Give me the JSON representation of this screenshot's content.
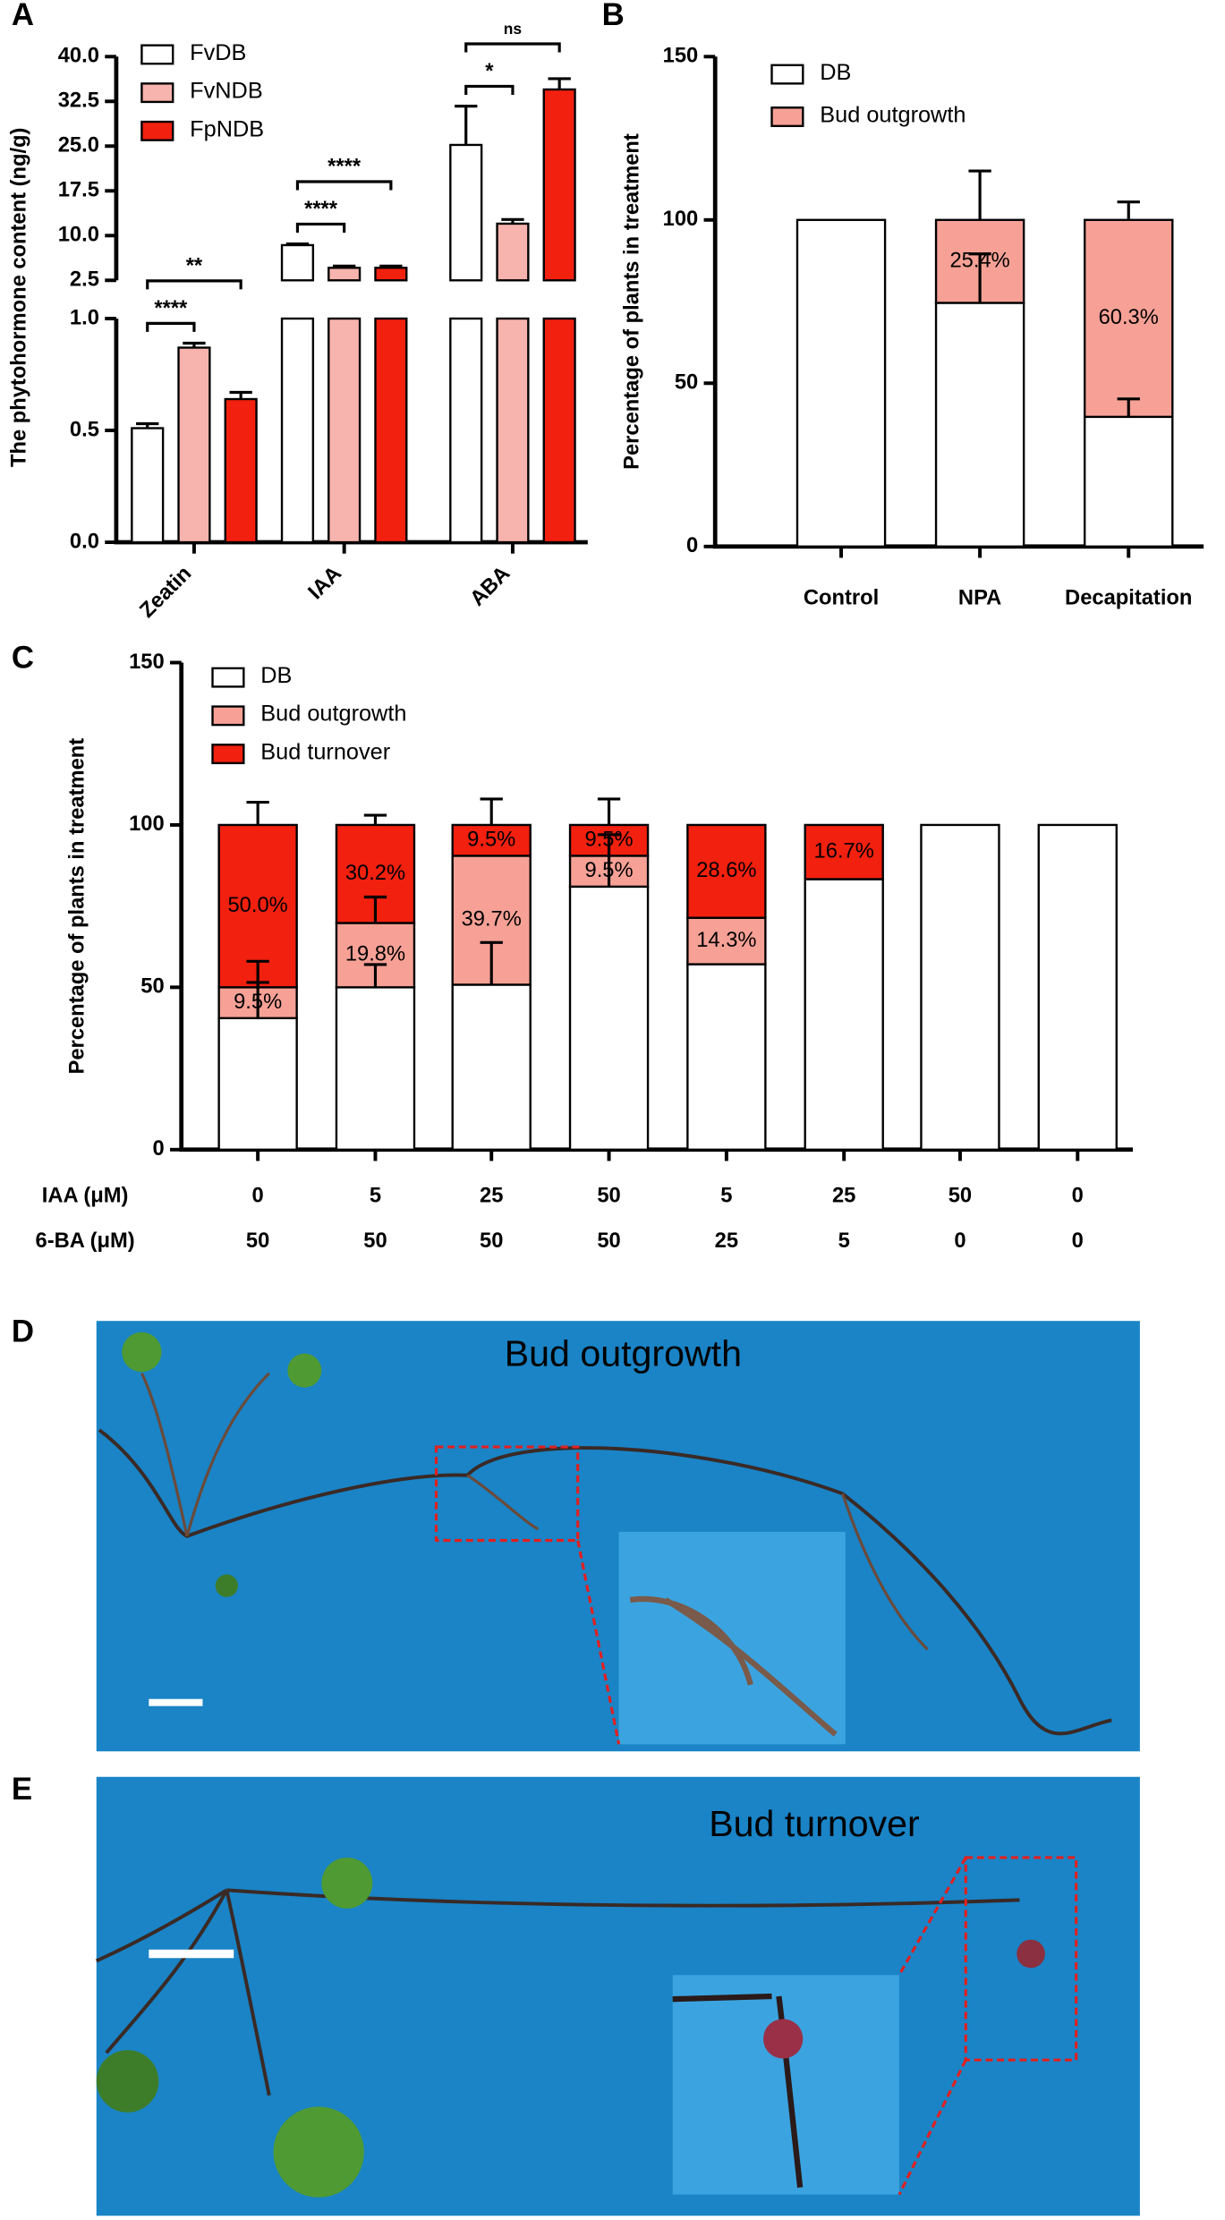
{
  "chart_data": [
    {
      "type": "broken_bar",
      "panel": "A",
      "ylabel": "The phytohormone content (ng/g)",
      "categories": [
        "Zeatin",
        "IAA",
        "ABA"
      ],
      "series": [
        {
          "name": "FvDB",
          "color": "#ffffff",
          "values": [
            0.51,
            8.4,
            25.2
          ],
          "errors": [
            0.02,
            0.2,
            6.5
          ]
        },
        {
          "name": "FvNDB",
          "color": "#f7b3ad",
          "values": [
            0.87,
            4.6,
            12.0
          ],
          "errors": [
            0.02,
            0.3,
            0.7
          ]
        },
        {
          "name": "FpNDB",
          "color": "#f2200f",
          "values": [
            0.64,
            4.6,
            34.5
          ],
          "errors": [
            0.03,
            0.3,
            1.8
          ]
        }
      ],
      "ylim": [
        0,
        40
      ],
      "ybreak": [
        1,
        2.5
      ],
      "yticks": [
        {
          "value": 0,
          "label": "0.0"
        },
        {
          "value": 0.5,
          "label": "0.5"
        },
        {
          "value": 1,
          "label": "1.0"
        },
        2.5,
        {
          "value": 10,
          "label": "10.0"
        },
        17.5,
        {
          "value": 25,
          "label": "25.0"
        },
        32.5,
        {
          "value": 40,
          "label": "40.0"
        }
      ],
      "annotations": [
        {
          "text": "****",
          "category": "Zeatin",
          "between": [
            "FvDB",
            "FvNDB"
          ]
        },
        {
          "text": "**",
          "category": "Zeatin",
          "between": [
            "FvDB",
            "FpNDB"
          ]
        },
        {
          "text": "****",
          "category": "IAA",
          "between": [
            "FvDB",
            "FvNDB"
          ]
        },
        {
          "text": "****",
          "category": "IAA",
          "between": [
            "FvDB",
            "FpNDB"
          ]
        },
        {
          "text": "*",
          "category": "ABA",
          "between": [
            "FvDB",
            "FvNDB"
          ]
        },
        {
          "text": "ns",
          "category": "ABA",
          "between": [
            "FvDB",
            "FpNDB"
          ]
        }
      ]
    },
    {
      "type": "stacked_bar",
      "panel": "B",
      "ylabel": "Percentage of plants in treatment",
      "categories": [
        "Control",
        "NPA",
        "Decapitation"
      ],
      "series": [
        {
          "name": "DB",
          "color": "#ffffff",
          "values": [
            100,
            74.6,
            39.7
          ],
          "errors": [
            null,
            15,
            5.5
          ]
        },
        {
          "name": "Bud outgrowth",
          "color": "#f7a196",
          "values": [
            0,
            25.4,
            60.3
          ],
          "errors": [
            null,
            15,
            5.5
          ],
          "value_labels": [
            null,
            "25.4%",
            "60.3%"
          ]
        }
      ],
      "ylim": [
        0,
        150
      ],
      "yticks": [
        0,
        50,
        100,
        150
      ]
    },
    {
      "type": "stacked_bar",
      "panel": "C",
      "ylabel": "Percentage of plants in treatment",
      "category_rows": [
        {
          "label": "IAA (μM)",
          "values": [
            0,
            5,
            25,
            50,
            5,
            25,
            50,
            0
          ]
        },
        {
          "label": "6-BA (μM)",
          "values": [
            50,
            50,
            50,
            50,
            25,
            5,
            0,
            0
          ]
        }
      ],
      "series": [
        {
          "name": "DB",
          "color": "#ffffff",
          "values": [
            40.5,
            50.0,
            50.8,
            81.0,
            57.1,
            83.3,
            100,
            100
          ],
          "errors": [
            11,
            7,
            13,
            16,
            null,
            null,
            null,
            null
          ]
        },
        {
          "name": "Bud outgrowth",
          "color": "#f7a196",
          "values": [
            9.5,
            19.8,
            39.7,
            9.5,
            14.3,
            0,
            0,
            0
          ],
          "errors": [
            8,
            8,
            null,
            null,
            null,
            null,
            null,
            null
          ],
          "value_labels": [
            "9.5%",
            "19.8%",
            "39.7%",
            "9.5%",
            "14.3%",
            null,
            null,
            null
          ]
        },
        {
          "name": "Bud turnover",
          "color": "#f2200f",
          "values": [
            50.0,
            30.2,
            9.5,
            9.5,
            28.6,
            16.7,
            0,
            0
          ],
          "errors": [
            7,
            3,
            8,
            8,
            null,
            null,
            null,
            null
          ],
          "value_labels": [
            "50.0%",
            "30.2%",
            "9.5%",
            "9.5%",
            "28.6%",
            "16.7%",
            null,
            null
          ]
        }
      ],
      "ylim": [
        0,
        150
      ],
      "yticks": [
        0,
        50,
        100,
        150
      ]
    }
  ],
  "photos": [
    {
      "panel": "D",
      "label": "Bud outgrowth"
    },
    {
      "panel": "E",
      "label": "Bud turnover"
    }
  ]
}
